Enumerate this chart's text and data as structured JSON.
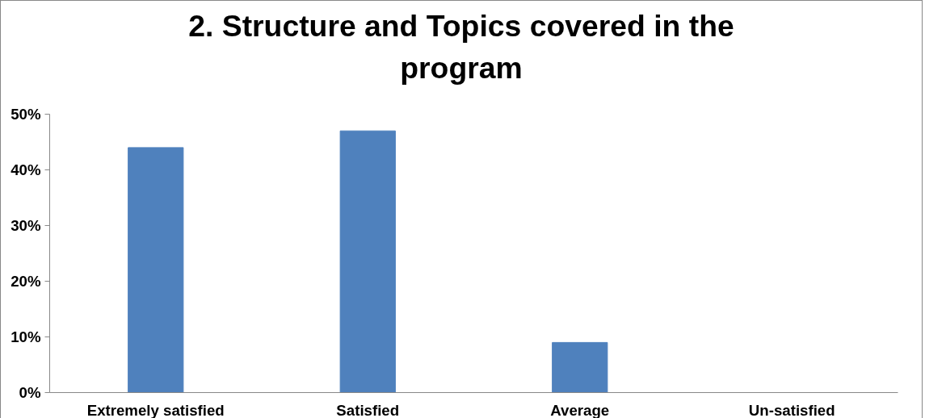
{
  "chart_data": {
    "type": "bar",
    "title": "2. Structure and Topics covered in the program",
    "categories": [
      "Extremely satisfied",
      "Satisfied",
      "Average",
      "Un-satisfied"
    ],
    "values": [
      44,
      47,
      9,
      0
    ],
    "color": "#4f81bd",
    "ylim": [
      0,
      50
    ],
    "yticks": [
      {
        "value": 0,
        "label": "0%"
      },
      {
        "value": 10,
        "label": "10%"
      },
      {
        "value": 20,
        "label": "20%"
      },
      {
        "value": 30,
        "label": "30%"
      },
      {
        "value": 40,
        "label": "40%"
      },
      {
        "value": 50,
        "label": "50%"
      }
    ],
    "grid": false
  }
}
